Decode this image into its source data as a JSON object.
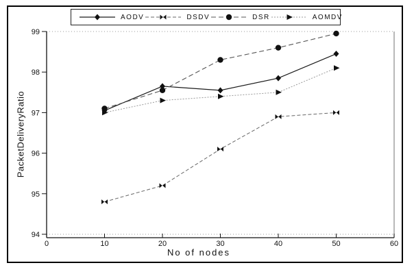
{
  "figure": {
    "border_color": "#000000",
    "background": "#ffffff"
  },
  "chart_data": {
    "type": "line",
    "title": "",
    "xlabel": "No of nodes",
    "ylabel": "PacketDeliveryRatio",
    "xlim": [
      0,
      60
    ],
    "ylim": [
      94,
      99
    ],
    "xticks": [
      0,
      10,
      20,
      30,
      40,
      50,
      60
    ],
    "yticks": [
      94,
      95,
      96,
      97,
      98,
      99
    ],
    "grid": "dotted lines at y=94 and y=99 only",
    "legend_position": "top",
    "x": [
      10,
      20,
      30,
      40,
      50
    ],
    "series": [
      {
        "name": "AODV",
        "values": [
          97.05,
          97.65,
          97.55,
          97.85,
          98.45
        ],
        "marker": "diamond",
        "marker_color": "#111111",
        "line_color": "#1a1a1a",
        "line_dash": "",
        "line_width": 1.2
      },
      {
        "name": "DSDV",
        "values": [
          94.8,
          95.2,
          96.1,
          96.9,
          97.0
        ],
        "marker": "bowtie",
        "marker_color": "#111111",
        "line_color": "#666666",
        "line_dash": "5 3",
        "line_width": 1
      },
      {
        "name": "DSR",
        "values": [
          97.1,
          97.55,
          98.3,
          98.6,
          98.95
        ],
        "marker": "circle",
        "marker_color": "#111111",
        "line_color": "#555555",
        "line_dash": "7 4",
        "line_width": 1.1
      },
      {
        "name": "AOMDV",
        "values": [
          97.0,
          97.3,
          97.4,
          97.5,
          98.1
        ],
        "marker": "triangle-right",
        "marker_color": "#111111",
        "line_color": "#999999",
        "line_dash": "2 2",
        "line_width": 1
      }
    ],
    "axis_colors": {
      "left_bottom_border": "#111111",
      "right_border": "#888888",
      "grid_dotted": "#999999",
      "tick_label_color": "#111111"
    }
  }
}
